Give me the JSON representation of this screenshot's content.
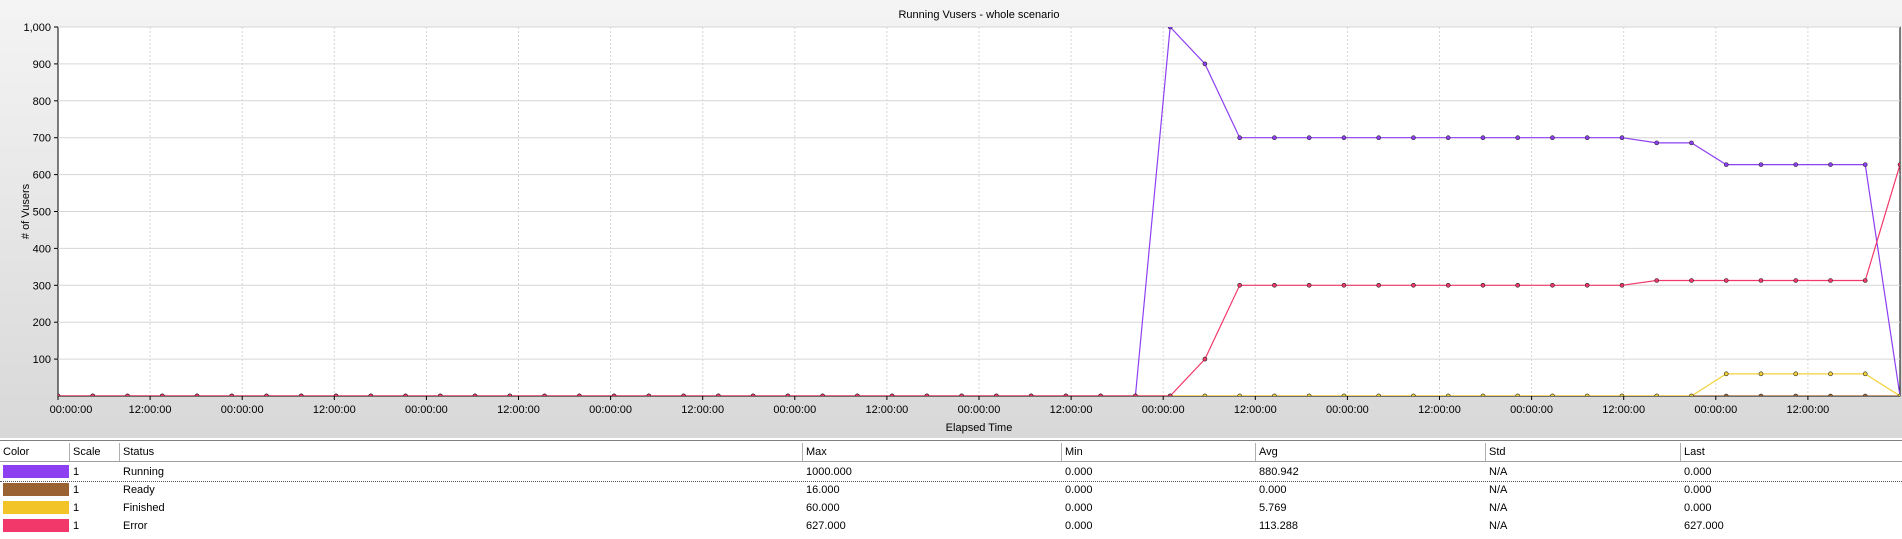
{
  "chart_data": {
    "type": "line",
    "title": "Running Vusers - whole scenario",
    "xlabel": "Elapsed Time",
    "ylabel": "# of Vusers",
    "ylim": [
      0,
      1000
    ],
    "yticks": [
      100,
      200,
      300,
      400,
      500,
      600,
      700,
      800,
      900,
      "1,000"
    ],
    "xticks": [
      "00:00:00",
      "12:00:00",
      "00:00:00",
      "12:00:00",
      "00:00:00",
      "12:00:00",
      "00:00:00",
      "12:00:00",
      "00:00:00",
      "12:00:00",
      "00:00:00",
      "12:00:00",
      "00:00:00",
      "12:00:00",
      "00:00:00",
      "12:00:00",
      "00:00:00",
      "12:00:00",
      "00:00:00",
      "12:00:00"
    ],
    "grid": true,
    "x": [
      0,
      1,
      2,
      3,
      4,
      5,
      6,
      7,
      8,
      9,
      10,
      11,
      12,
      13,
      14,
      15,
      16,
      17,
      18,
      19,
      20,
      21,
      22,
      23,
      24,
      25,
      26,
      27,
      28,
      29,
      30,
      31,
      32,
      33,
      34,
      35,
      36,
      37,
      38,
      39,
      40,
      41,
      42,
      43,
      44,
      45,
      46,
      47,
      48,
      49,
      50,
      51,
      52,
      53
    ],
    "series": [
      {
        "name": "Running",
        "color": "#8d3ff2",
        "values": [
          0,
          0,
          0,
          0,
          0,
          0,
          0,
          0,
          0,
          0,
          0,
          0,
          0,
          0,
          0,
          0,
          0,
          0,
          0,
          0,
          0,
          0,
          0,
          0,
          0,
          0,
          0,
          0,
          0,
          0,
          0,
          0,
          1000,
          900,
          700,
          700,
          700,
          700,
          700,
          700,
          700,
          700,
          700,
          700,
          700,
          700,
          686,
          686,
          627,
          627,
          627,
          627,
          627,
          0
        ]
      },
      {
        "name": "Ready",
        "color": "#9a6232",
        "values": [
          0,
          0,
          0,
          0,
          0,
          0,
          0,
          0,
          0,
          0,
          0,
          0,
          0,
          0,
          0,
          0,
          0,
          0,
          0,
          0,
          0,
          0,
          0,
          0,
          0,
          0,
          0,
          0,
          0,
          0,
          0,
          0,
          0,
          0,
          0,
          0,
          0,
          0,
          0,
          0,
          0,
          0,
          0,
          0,
          0,
          0,
          0,
          0,
          0,
          0,
          0,
          0,
          0,
          0
        ]
      },
      {
        "name": "Finished",
        "color": "#f2d23a",
        "values": [
          0,
          0,
          0,
          0,
          0,
          0,
          0,
          0,
          0,
          0,
          0,
          0,
          0,
          0,
          0,
          0,
          0,
          0,
          0,
          0,
          0,
          0,
          0,
          0,
          0,
          0,
          0,
          0,
          0,
          0,
          0,
          0,
          0,
          0,
          0,
          0,
          0,
          0,
          0,
          0,
          0,
          0,
          0,
          0,
          0,
          0,
          0,
          0,
          60,
          60,
          60,
          60,
          60,
          0
        ]
      },
      {
        "name": "Error",
        "color": "#f2386a",
        "values": [
          0,
          0,
          0,
          0,
          0,
          0,
          0,
          0,
          0,
          0,
          0,
          0,
          0,
          0,
          0,
          0,
          0,
          0,
          0,
          0,
          0,
          0,
          0,
          0,
          0,
          0,
          0,
          0,
          0,
          0,
          0,
          0,
          0,
          100,
          300,
          300,
          300,
          300,
          300,
          300,
          300,
          300,
          300,
          300,
          300,
          300,
          313,
          313,
          313,
          313,
          313,
          313,
          313,
          627
        ]
      }
    ]
  },
  "legend_table": {
    "headers": {
      "color": "Color",
      "scale": "Scale",
      "status": "Status",
      "max": "Max",
      "min": "Min",
      "avg": "Avg",
      "std": "Std",
      "last": "Last"
    },
    "rows": [
      {
        "color": "#8d3ff2",
        "scale": "1",
        "status": "Running",
        "max": "1000.000",
        "min": "0.000",
        "avg": "880.942",
        "std": "N/A",
        "last": "0.000"
      },
      {
        "color": "#9a6232",
        "scale": "1",
        "status": "Ready",
        "max": "16.000",
        "min": "0.000",
        "avg": "0.000",
        "std": "N/A",
        "last": "0.000"
      },
      {
        "color": "#f2c428",
        "scale": "1",
        "status": "Finished",
        "max": "60.000",
        "min": "0.000",
        "avg": "5.769",
        "std": "N/A",
        "last": "0.000"
      },
      {
        "color": "#f2386a",
        "scale": "1",
        "status": "Error",
        "max": "627.000",
        "min": "0.000",
        "avg": "113.288",
        "std": "N/A",
        "last": "627.000"
      }
    ]
  }
}
